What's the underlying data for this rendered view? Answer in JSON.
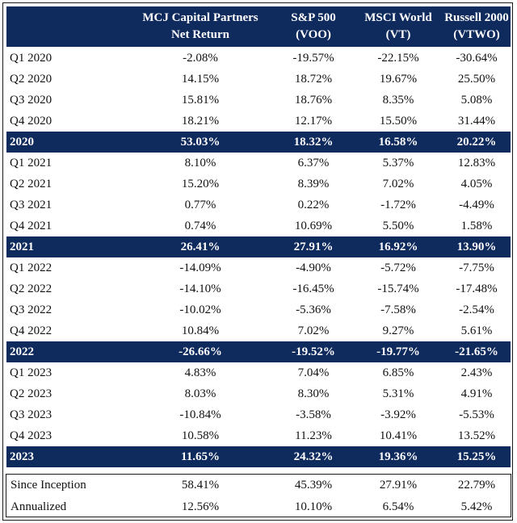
{
  "headers": {
    "col1": [
      "MCJ Capital Partners",
      "Net Return"
    ],
    "col2": [
      "S&P 500",
      "(VOO)"
    ],
    "col3": [
      "MSCI World",
      "(VT)"
    ],
    "col4": [
      "Russell 2000",
      "(VTWO)"
    ]
  },
  "rows": [
    {
      "label": "Q1 2020",
      "values": [
        "-2.08%",
        "-19.57%",
        "-22.15%",
        "-30.64%"
      ],
      "year": false
    },
    {
      "label": "Q2 2020",
      "values": [
        "14.15%",
        "18.72%",
        "19.67%",
        "25.50%"
      ],
      "year": false
    },
    {
      "label": "Q3 2020",
      "values": [
        "15.81%",
        "18.76%",
        "8.35%",
        "5.08%"
      ],
      "year": false
    },
    {
      "label": "Q4 2020",
      "values": [
        "18.21%",
        "12.17%",
        "15.50%",
        "31.44%"
      ],
      "year": false
    },
    {
      "label": "2020",
      "values": [
        "53.03%",
        "18.32%",
        "16.58%",
        "20.22%"
      ],
      "year": true
    },
    {
      "label": "Q1 2021",
      "values": [
        "8.10%",
        "6.37%",
        "5.37%",
        "12.83%"
      ],
      "year": false
    },
    {
      "label": "Q2 2021",
      "values": [
        "15.20%",
        "8.39%",
        "7.02%",
        "4.05%"
      ],
      "year": false
    },
    {
      "label": "Q3 2021",
      "values": [
        "0.77%",
        "0.22%",
        "-1.72%",
        "-4.49%"
      ],
      "year": false
    },
    {
      "label": "Q4 2021",
      "values": [
        "0.74%",
        "10.69%",
        "5.50%",
        "1.58%"
      ],
      "year": false
    },
    {
      "label": "2021",
      "values": [
        "26.41%",
        "27.91%",
        "16.92%",
        "13.90%"
      ],
      "year": true
    },
    {
      "label": "Q1 2022",
      "values": [
        "-14.09%",
        "-4.90%",
        "-5.72%",
        "-7.75%"
      ],
      "year": false
    },
    {
      "label": "Q2 2022",
      "values": [
        "-14.10%",
        "-16.45%",
        "-15.74%",
        "-17.48%"
      ],
      "year": false
    },
    {
      "label": "Q3 2022",
      "values": [
        "-10.02%",
        "-5.36%",
        "-7.58%",
        "-2.54%"
      ],
      "year": false
    },
    {
      "label": "Q4 2022",
      "values": [
        "10.84%",
        "7.02%",
        "9.27%",
        "5.61%"
      ],
      "year": false
    },
    {
      "label": "2022",
      "values": [
        "-26.66%",
        "-19.52%",
        "-19.77%",
        "-21.65%"
      ],
      "year": true
    },
    {
      "label": "Q1 2023",
      "values": [
        "4.83%",
        "7.04%",
        "6.85%",
        "2.43%"
      ],
      "year": false
    },
    {
      "label": "Q2 2023",
      "values": [
        "8.03%",
        "8.30%",
        "5.31%",
        "4.91%"
      ],
      "year": false
    },
    {
      "label": "Q3 2023",
      "values": [
        "-10.84%",
        "-3.58%",
        "-3.92%",
        "-5.53%"
      ],
      "year": false
    },
    {
      "label": "Q4 2023",
      "values": [
        "10.58%",
        "11.23%",
        "10.41%",
        "13.52%"
      ],
      "year": false
    },
    {
      "label": "2023",
      "values": [
        "11.65%",
        "24.32%",
        "19.36%",
        "15.25%"
      ],
      "year": true
    }
  ],
  "summary": [
    {
      "label": "Since Inception",
      "values": [
        "58.41%",
        "45.39%",
        "27.91%",
        "22.79%"
      ]
    },
    {
      "label": "Annualized",
      "values": [
        "12.56%",
        "10.10%",
        "6.54%",
        "5.42%"
      ]
    }
  ]
}
